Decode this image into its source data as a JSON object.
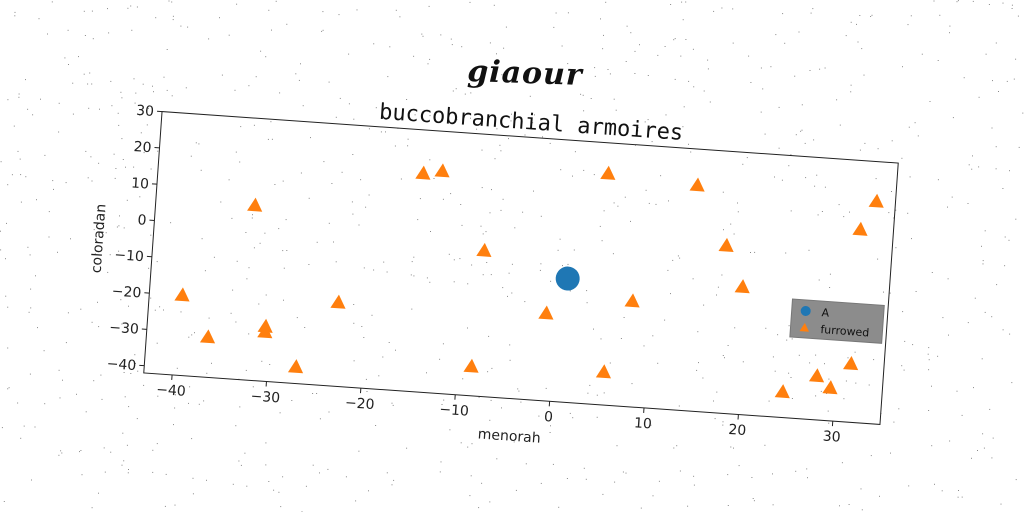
{
  "suptitle": "giaour",
  "chart_data": {
    "type": "scatter",
    "title": "buccobranchial armoires",
    "xlabel": "menorah",
    "ylabel": "coloradan",
    "xlim": [
      -43,
      35
    ],
    "ylim": [
      -42,
      30
    ],
    "xticks": [
      -40,
      -30,
      -20,
      -10,
      0,
      10,
      20,
      30
    ],
    "yticks": [
      -40,
      -30,
      -20,
      -10,
      0,
      10,
      20,
      30
    ],
    "grid": false,
    "legend_position": "right",
    "series": [
      {
        "name": "A",
        "marker": "circle",
        "color": "#1f77b4",
        "points": [
          [
            1,
            -8
          ]
        ]
      },
      {
        "name": "furrowed",
        "marker": "triangle",
        "color": "#ff7f0e",
        "points": [
          [
            -39.5,
            -20
          ],
          [
            -36.5,
            -31
          ],
          [
            -32.5,
            6
          ],
          [
            -30.5,
            -27
          ],
          [
            -30.5,
            -28.5
          ],
          [
            -27,
            -37.5
          ],
          [
            -23,
            -19
          ],
          [
            -15,
            18
          ],
          [
            -13,
            19
          ],
          [
            -8,
            -2
          ],
          [
            -8.5,
            -34
          ],
          [
            -1,
            -18
          ],
          [
            4.5,
            21.5
          ],
          [
            5.5,
            -33
          ],
          [
            8,
            -13
          ],
          [
            14,
            20
          ],
          [
            17.5,
            4
          ],
          [
            19.5,
            -7
          ],
          [
            24.5,
            -35
          ],
          [
            28,
            -30
          ],
          [
            29.5,
            -33
          ],
          [
            31.5,
            -26
          ],
          [
            31.5,
            11
          ],
          [
            33,
            19
          ]
        ]
      }
    ]
  }
}
